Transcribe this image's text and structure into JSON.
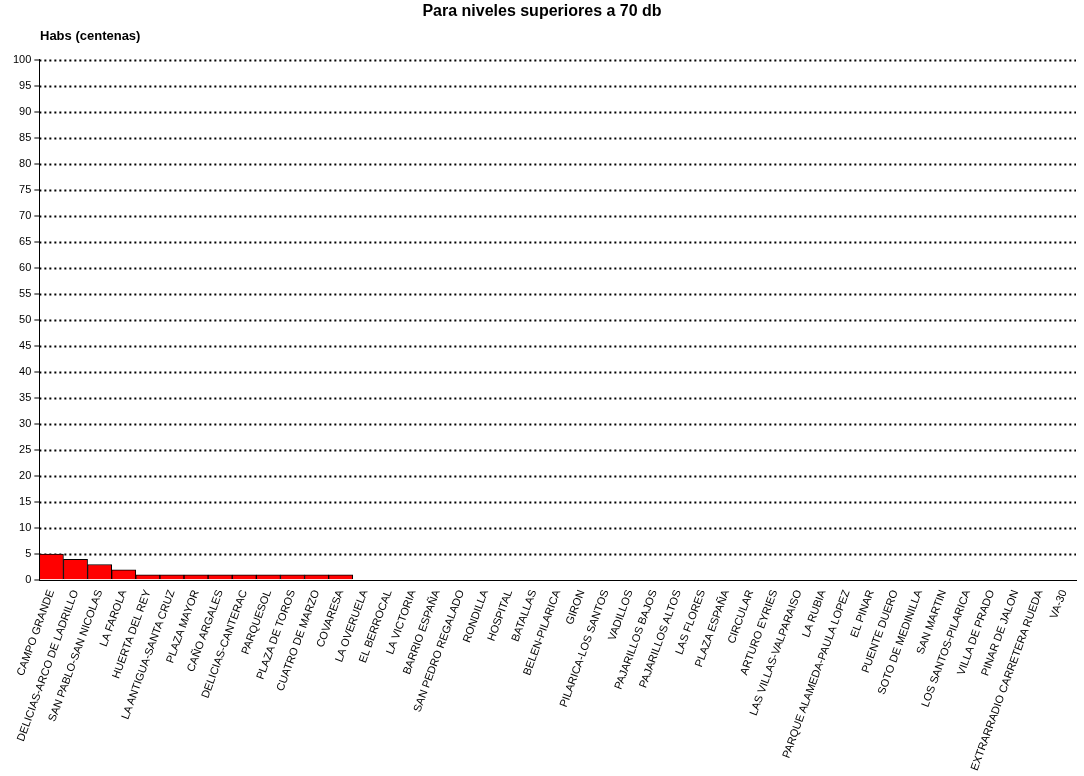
{
  "chart_data": {
    "type": "bar",
    "title": "Para niveles superiores a 70 db",
    "ylabel": "Habs (centenas)",
    "categories": [
      "CAMPO GRANDE",
      "DELICIAS-ARCO DE LADRILLO",
      "SAN PABLO-SAN NICOLAS",
      "LA FAROLA",
      "HUERTA DEL REY",
      "LA ANTIGUA-SANTA CRUZ",
      "PLAZA MAYOR",
      "CAÑO ARGALES",
      "DELICIAS-CANTERAC",
      "PARQUESOL",
      "PLAZA DE TOROS",
      "CUATRO DE MARZO",
      "COVARESA",
      "LA OVERUELA",
      "EL BERROCAL",
      "LA VICTORIA",
      "BARRIO ESPAÑA",
      "SAN PEDRO REGALADO",
      "RONDILLA",
      "HOSPITAL",
      "BATALLAS",
      "BELEN-PILARICA",
      "GIRON",
      "PILARICA-LOS SANTOS",
      "VADILLOS",
      "PAJARILLOS BAJOS",
      "PAJARILLOS ALTOS",
      "LAS FLORES",
      "PLAZA ESPAÑA",
      "CIRCULAR",
      "ARTURO EYRIES",
      "LAS VILLAS-VALPARAISO",
      "LA RUBIA",
      "PARQUE ALAMEDA-PAULA LOPEZ",
      "EL PINAR",
      "PUENTE DUERO",
      "SOTO DE MEDINILLA",
      "SAN MARTIN",
      "LOS SANTOS-PILARICA",
      "VILLA DE PRADO",
      "PINAR DE JALON",
      "EXTRARRADIO CARRETERA RUEDA",
      "VA-30"
    ],
    "values": [
      5,
      4,
      3,
      2,
      1,
      1,
      1,
      1,
      1,
      1,
      1,
      1,
      1,
      0,
      0,
      0,
      0,
      0,
      0,
      0,
      0,
      0,
      0,
      0,
      0,
      0,
      0,
      0,
      0,
      0,
      0,
      0,
      0,
      0,
      0,
      0,
      0,
      0,
      0,
      0,
      0,
      0,
      0
    ],
    "color": "#ff0000",
    "ylim": [
      0,
      100
    ],
    "yticks": [
      0,
      5,
      10,
      15,
      20,
      25,
      30,
      35,
      40,
      45,
      50,
      55,
      60,
      65,
      70,
      75,
      80,
      85,
      90,
      95,
      100
    ],
    "grid": "y",
    "line_style": "dotted"
  }
}
